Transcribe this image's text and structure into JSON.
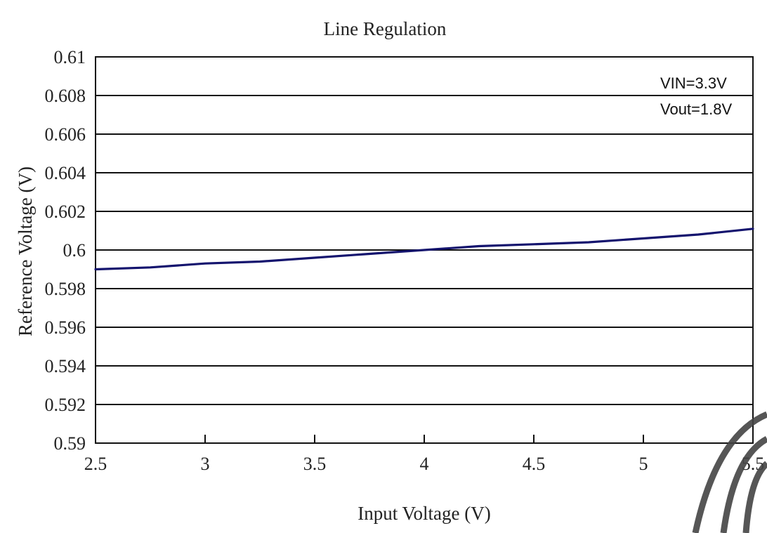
{
  "chart_data": {
    "type": "line",
    "title": "Line Regulation",
    "xlabel": "Input Voltage (V)",
    "ylabel": "Reference Voltage (V)",
    "xlim": [
      2.5,
      5.5
    ],
    "ylim": [
      0.59,
      0.61
    ],
    "x_ticks": [
      "2.5",
      "3",
      "3.5",
      "4",
      "4.5",
      "5",
      "5.5"
    ],
    "y_ticks": [
      "0.59",
      "0.592",
      "0.594",
      "0.596",
      "0.598",
      "0.6",
      "0.602",
      "0.604",
      "0.606",
      "0.608",
      "0.61"
    ],
    "grid": true,
    "annotations": [
      "VIN=3.3V",
      "Vout=1.8V"
    ],
    "series": [
      {
        "color": "#14146e",
        "x": [
          2.5,
          2.75,
          3.0,
          3.25,
          3.5,
          3.75,
          4.0,
          4.25,
          4.5,
          4.75,
          5.0,
          5.25,
          5.5
        ],
        "y": [
          0.599,
          0.5991,
          0.5993,
          0.5994,
          0.5996,
          0.5998,
          0.6,
          0.6002,
          0.6003,
          0.6004,
          0.6006,
          0.6008,
          0.6011
        ]
      }
    ]
  }
}
